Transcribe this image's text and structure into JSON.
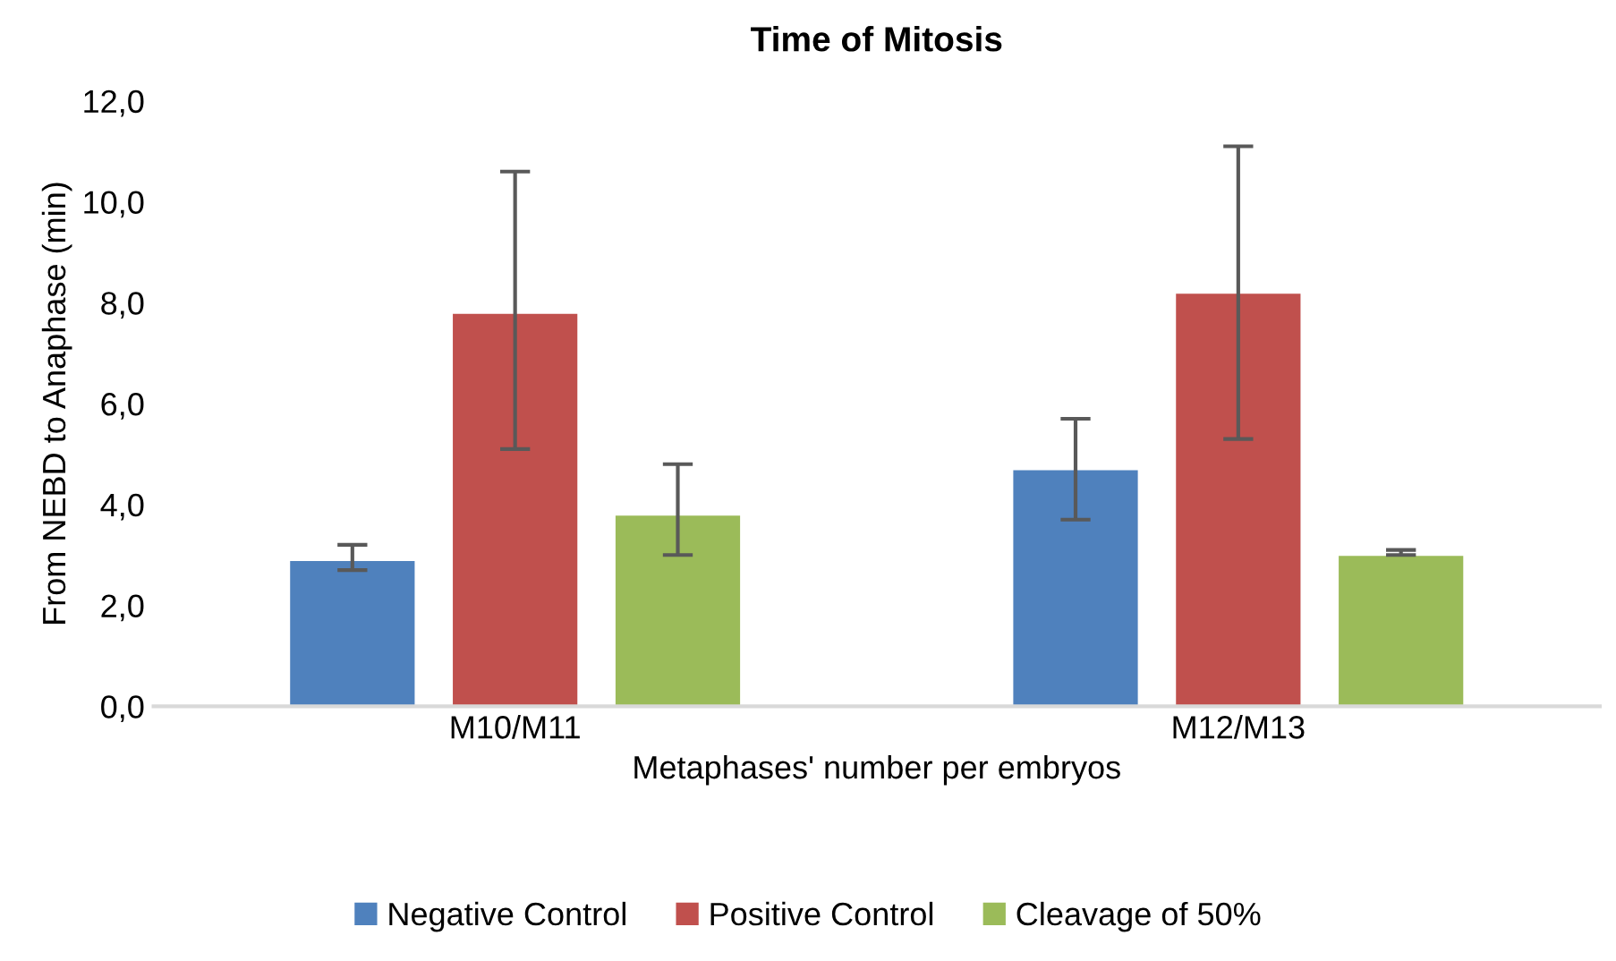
{
  "chart_data": {
    "type": "bar",
    "title": "Time of Mitosis",
    "xlabel": "Metaphases' number per embryos",
    "ylabel": "From NEBD to Anaphase (min)",
    "categories": [
      "M10/M11",
      "M12/M13"
    ],
    "series": [
      {
        "name": "Negative Control",
        "color": "#4f81bd",
        "values": [
          2.9,
          4.7
        ],
        "errors": [
          [
            2.7,
            3.2
          ],
          [
            3.7,
            5.7
          ]
        ]
      },
      {
        "name": "Positive Control",
        "color": "#c0504d",
        "values": [
          7.8,
          8.2
        ],
        "errors": [
          [
            5.1,
            10.6
          ],
          [
            5.3,
            11.1
          ]
        ]
      },
      {
        "name": "Cleavage of 50%",
        "color": "#9bbb59",
        "values": [
          3.8,
          3.0
        ],
        "errors": [
          [
            3.0,
            4.8
          ],
          [
            3.0,
            3.1
          ]
        ]
      }
    ],
    "ylim": [
      0,
      12
    ],
    "yticks": [
      {
        "value": 0,
        "label": "0,0"
      },
      {
        "value": 2,
        "label": "2,0"
      },
      {
        "value": 4,
        "label": "4,0"
      },
      {
        "value": 6,
        "label": "6,0"
      },
      {
        "value": 8,
        "label": "8,0"
      },
      {
        "value": 10,
        "label": "10,0"
      },
      {
        "value": 12,
        "label": "12,0"
      }
    ],
    "grid": false,
    "legend": "bottom"
  }
}
